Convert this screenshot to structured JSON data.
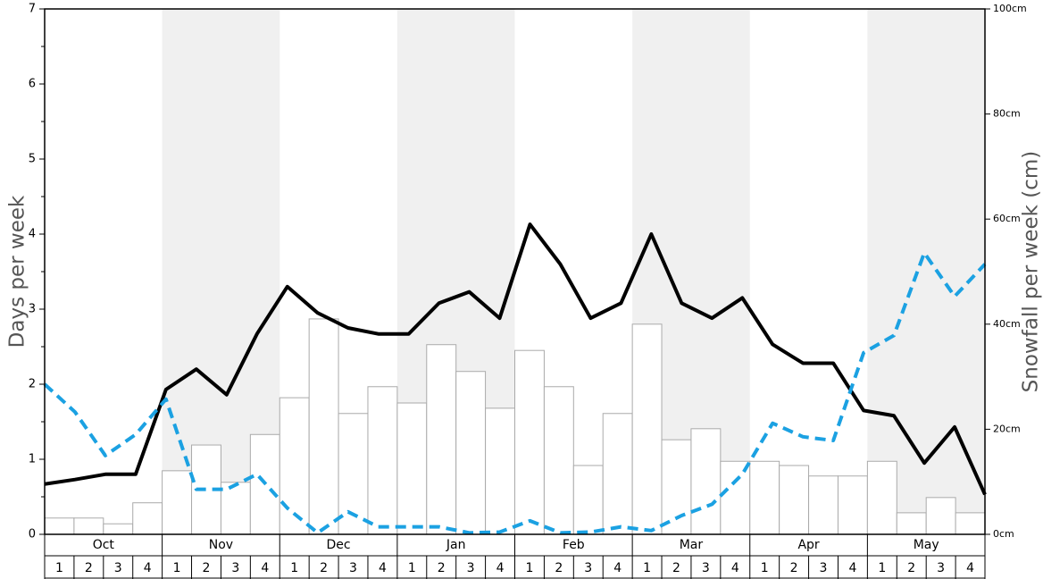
{
  "chart_data": {
    "type": "bar-line",
    "y_label": "Days per week",
    "y2_label": "Snowfall per week (cm)",
    "months": [
      "Oct",
      "Nov",
      "Dec",
      "Jan",
      "Feb",
      "Mar",
      "Apr",
      "May"
    ],
    "weeks": [
      "1",
      "2",
      "3",
      "4"
    ],
    "ylim": [
      0,
      7
    ],
    "yticks": [
      0,
      1,
      2,
      3,
      4,
      5,
      6,
      7
    ],
    "yminorticks": [
      0.5,
      1.5,
      2.5,
      3.5,
      4.5,
      5.5,
      6.5
    ],
    "y2lim": [
      0,
      100
    ],
    "y2ticks": [
      {
        "value": 0,
        "label": "0cm"
      },
      {
        "value": 20,
        "label": "20cm"
      },
      {
        "value": 40,
        "label": "40cm"
      },
      {
        "value": 60,
        "label": "60cm"
      },
      {
        "value": 80,
        "label": "80cm"
      },
      {
        "value": 100,
        "label": "100cm"
      }
    ],
    "shaded_months": [
      false,
      true,
      false,
      true,
      false,
      true,
      false,
      true
    ],
    "series": [
      {
        "kind": "bar",
        "axis": "y2",
        "color": "#ffffff",
        "edge": "#aaaaaa",
        "values": [
          3.1,
          3.1,
          2.0,
          6.0,
          12.1,
          17.0,
          9.9,
          19.0,
          26.0,
          41.0,
          23.0,
          28.1,
          25.0,
          36.1,
          31.0,
          24.0,
          35.0,
          28.1,
          13.1,
          23.0,
          40.0,
          18.0,
          20.1,
          13.9,
          13.9,
          13.1,
          11.1,
          11.1,
          13.9,
          4.1,
          7.0,
          4.1
        ]
      },
      {
        "kind": "line",
        "axis": "y",
        "color": "#000000",
        "dashed": false,
        "values": [
          0.67,
          0.73,
          0.8,
          0.8,
          1.93,
          2.2,
          1.86,
          2.67,
          3.3,
          2.95,
          2.75,
          2.67,
          2.67,
          3.08,
          3.23,
          2.88,
          4.13,
          3.6,
          2.88,
          3.08,
          4.0,
          3.08,
          2.88,
          3.15,
          2.53,
          2.28,
          2.28,
          1.65,
          1.58,
          0.95,
          1.43,
          0.53
        ]
      },
      {
        "kind": "line",
        "axis": "y",
        "color": "#1ba1e2",
        "dashed": true,
        "values": [
          2.0,
          1.63,
          1.05,
          1.33,
          1.8,
          0.6,
          0.6,
          0.8,
          0.35,
          0.02,
          0.3,
          0.1,
          0.1,
          0.1,
          0.02,
          0.03,
          0.18,
          0.02,
          0.03,
          0.1,
          0.05,
          0.25,
          0.4,
          0.8,
          1.48,
          1.3,
          1.25,
          2.42,
          2.65,
          3.75,
          3.17,
          3.6
        ]
      }
    ]
  }
}
